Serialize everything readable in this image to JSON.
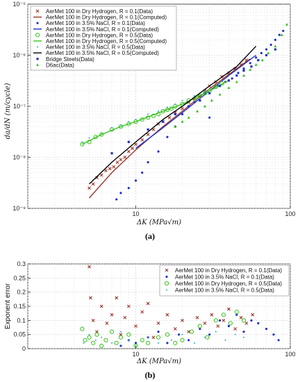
{
  "chart_data": [
    {
      "type": "scatter",
      "panel_label": "(a)",
      "xlabel": "ΔK (MPa√m)",
      "ylabel": "da/dN (m/cycle)",
      "xscale": "log",
      "yscale": "log",
      "xlim": [
        2,
        100
      ],
      "ylim": [
        1e-09,
        1e-05
      ],
      "x_tick_labels": [
        "10",
        "100"
      ],
      "x_tick_values": [
        10,
        100
      ],
      "y_tick_labels": [
        "10⁻⁹",
        "10⁻⁸",
        "10⁻⁷",
        "10⁻⁶",
        "10⁻⁵"
      ],
      "y_tick_values": [
        1e-09,
        1e-08,
        1e-07,
        1e-06,
        1e-05
      ],
      "grid": true,
      "legend_position": "top-left",
      "series": [
        {
          "name": "AerMet 100 in Dry Hydrogen, R = 0.1(Data)",
          "kind": "markers",
          "marker": "x",
          "color": "#a0352a",
          "x": [
            5.0,
            5.3,
            5.6,
            6.0,
            6.4,
            6.8,
            7.2,
            7.6,
            8.0,
            8.5,
            9.0,
            9.5,
            10.0,
            11.0,
            12.0,
            13.0,
            14.0,
            15.0,
            16.5,
            18.0,
            20.0,
            22.0,
            24.0,
            26.0,
            28.0,
            30.0,
            33.0,
            36.0,
            40.0,
            44.0,
            48.0,
            52.0
          ],
          "y": [
            2.5e-09,
            3e-09,
            4e-09,
            4.5e-09,
            5.5e-09,
            6e-09,
            6.5e-09,
            8e-09,
            9e-09,
            1e-08,
            1.3e-08,
            1.5e-08,
            1.8e-08,
            2.2e-08,
            2.8e-08,
            3.5e-08,
            4.5e-08,
            5e-08,
            6e-08,
            7.5e-08,
            9e-08,
            1.2e-07,
            1.4e-07,
            1.6e-07,
            2e-07,
            2.5e-07,
            3e-07,
            3.8e-07,
            4.5e-07,
            5.5e-07,
            6.5e-07,
            8e-07
          ]
        },
        {
          "name": "AerMet 100 in Dry Hydrogen, R = 0.1(Computed)",
          "kind": "line",
          "color": "#a0352a",
          "x": [
            5.0,
            7.0,
            10.0,
            15.0,
            20.0,
            30.0,
            40.0,
            55.0
          ],
          "y": [
            1.6e-09,
            5e-09,
            1.4e-08,
            4e-08,
            8e-08,
            2.2e-07,
            4.2e-07,
            8.5e-07
          ]
        },
        {
          "name": "AerMet 100 in 3.5% NaCl, R = 0.1(Data)",
          "kind": "markers",
          "marker": "dot",
          "color": "#1f2fd0",
          "x": [
            7.5,
            8.0,
            9.0,
            10.0,
            11.0,
            12.0,
            14.0,
            16.0,
            18.0,
            20.0,
            24.0,
            28.0,
            30.0,
            34.0,
            38.0,
            42.0,
            46.0,
            50.0,
            55.0,
            60.0,
            65.0,
            70.0,
            75.0,
            80.0,
            85.0,
            90.0
          ],
          "y": [
            1.5e-09,
            2e-09,
            2.5e-09,
            3.5e-09,
            5e-09,
            8e-09,
            1.3e-08,
            2.5e-08,
            4e-08,
            7e-08,
            1.2e-07,
            1.8e-07,
            6e-08,
            2.5e-07,
            3e-07,
            3.5e-07,
            4.5e-07,
            5.5e-07,
            7e-07,
            9e-07,
            1.1e-06,
            1.3e-06,
            1.6e-06,
            2e-06,
            2.5e-06,
            3e-06
          ]
        },
        {
          "name": "AerMet 100 in 3.5% NaCl, R = 0.1(Computed)",
          "kind": "line",
          "color": "#1f2fd0",
          "x": [
            10.0,
            15.0,
            20.0,
            30.0,
            40.0,
            60.0
          ],
          "y": [
            1.5e-08,
            3.8e-08,
            7.5e-08,
            2e-07,
            4e-07,
            1e-06
          ]
        },
        {
          "name": "AerMet 100 in Dry Hydrogen, R = 0.5(Data)",
          "kind": "markers",
          "marker": "o",
          "color": "#36c21b",
          "x": [
            4.5,
            5.0,
            5.5,
            6.0,
            7.0,
            8.0,
            9.0,
            10.0,
            11.0,
            12.0,
            13.0,
            14.0,
            15.0,
            16.0,
            17.0,
            18.0,
            20.0,
            22.0,
            24.0,
            26.0,
            28.0,
            30.0,
            33.0,
            36.0
          ],
          "y": [
            1.8e-08,
            2e-08,
            2.5e-08,
            2.8e-08,
            3.5e-08,
            4e-08,
            4.5e-08,
            5e-08,
            5.5e-08,
            6e-08,
            6.5e-08,
            7e-08,
            8e-08,
            8.5e-08,
            9e-08,
            1e-07,
            1.1e-07,
            1.3e-07,
            1.4e-07,
            1.6e-07,
            1.8e-07,
            2e-07,
            2.4e-07,
            2.8e-07
          ]
        },
        {
          "name": "AerMet 100 in Dry Hydrogen, R = 0.5(Computed)",
          "kind": "line",
          "color": "#36c21b",
          "x": [
            4.5,
            6.0,
            8.0,
            10.0,
            15.0,
            20.0,
            30.0,
            40.0
          ],
          "y": [
            1.8e-08,
            2.8e-08,
            4e-08,
            5e-08,
            8e-08,
            1.1e-07,
            2e-07,
            3.2e-07
          ]
        },
        {
          "name": "AerMet 100 in 3.5% NaCl, R = 0.5(Data)",
          "kind": "markers",
          "marker": "dot-small",
          "color": "#20b0c0",
          "x": [
            4.5,
            5.0,
            6.0,
            7.0,
            8.0,
            9.0,
            10.0,
            12.0,
            14.0,
            16.0,
            18.0,
            20.0,
            24.0,
            28.0
          ],
          "y": [
            2e-08,
            2.4e-08,
            3e-08,
            3.8e-08,
            4.3e-08,
            5e-08,
            5.5e-08,
            7e-08,
            8e-08,
            9.5e-08,
            1.1e-07,
            1.3e-07,
            1.6e-07,
            2e-07
          ]
        },
        {
          "name": "AerMet 100 in 3.5% NaCl, R = 0.5(Computed)",
          "kind": "line",
          "color": "#000000",
          "x": [
            5.0,
            7.0,
            10.0,
            15.0,
            20.0,
            30.0,
            45.0,
            60.0
          ],
          "y": [
            3e-09,
            8e-09,
            2e-08,
            5.5e-08,
            1e-07,
            2.5e-07,
            6e-07,
            1.5e-06
          ]
        },
        {
          "name": "Bridge Steels(Data)",
          "kind": "markers",
          "marker": "square",
          "color": "#1f2fd0",
          "x": [
            7.0,
            9.0,
            12.0,
            15.0,
            18.0,
            22.0,
            26.0,
            30.0,
            35.0,
            40.0,
            45.0,
            50.0,
            56.0,
            62.0,
            70.0,
            80.0
          ],
          "y": [
            1.2e-08,
            2e-08,
            3.5e-08,
            5e-08,
            7e-08,
            1e-07,
            1.3e-07,
            1.8e-07,
            2.5e-07,
            3.2e-07,
            4e-07,
            5e-07,
            6e-07,
            8e-07,
            1e-06,
            1.3e-06
          ]
        },
        {
          "name": "D6ac(Data)",
          "kind": "markers",
          "marker": "triangle",
          "color": "#36c21b",
          "x": [
            18.0,
            20.0,
            22.0,
            25.0,
            28.0,
            31.0,
            35.0,
            40.0,
            45.0,
            50.0,
            55.0,
            60.0,
            66.0,
            72.0,
            80.0,
            88.0,
            95.0
          ],
          "y": [
            4e-08,
            5e-08,
            6e-08,
            8e-08,
            1e-07,
            1.3e-07,
            1.7e-07,
            2.3e-07,
            3e-07,
            4e-07,
            5.2e-07,
            6.5e-07,
            8e-07,
            1.1e-06,
            1.5e-06,
            2.5e-06,
            4e-06
          ]
        }
      ]
    },
    {
      "type": "scatter",
      "panel_label": "(b)",
      "xlabel": "ΔK (MPa√m)",
      "ylabel": "Exponent error",
      "xscale": "log",
      "xlim": [
        2,
        100
      ],
      "ylim": [
        0,
        0.3
      ],
      "x_tick_labels": [
        "10",
        "100"
      ],
      "x_tick_values": [
        10,
        100
      ],
      "y_tick_labels": [
        "0",
        "0.05",
        "0.1",
        "0.15",
        "0.2",
        "0.25",
        "0.3"
      ],
      "y_tick_values": [
        0,
        0.05,
        0.1,
        0.15,
        0.2,
        0.25,
        0.3
      ],
      "grid": true,
      "legend_position": "top-right",
      "series": [
        {
          "name": "AerMet 100 in Dry Hydrogen, R = 0.1(Data)",
          "marker": "x",
          "color": "#a0352a",
          "x": [
            5.0,
            5.1,
            5.3,
            5.6,
            6.0,
            6.5,
            7.0,
            7.5,
            8.0,
            8.5,
            9.0,
            10.0,
            11.0,
            12.0,
            13.0,
            14.0,
            16.0,
            18.0,
            20.0,
            22.0,
            25.0,
            28.0,
            31.0,
            34.0,
            37.0,
            40.0,
            44.0,
            48.0,
            52.0,
            57.0
          ],
          "y": [
            0.29,
            0.18,
            0.1,
            0.06,
            0.15,
            0.09,
            0.12,
            0.18,
            0.05,
            0.11,
            0.15,
            0.08,
            0.13,
            0.16,
            0.04,
            0.09,
            0.12,
            0.07,
            0.1,
            0.06,
            0.11,
            0.09,
            0.12,
            0.08,
            0.1,
            0.14,
            0.07,
            0.11,
            0.09,
            0.12
          ]
        },
        {
          "name": "AerMet 100 in 3.5% NaCl, R = 0.1(Data)",
          "marker": "dot",
          "color": "#1f2fd0",
          "x": [
            8.0,
            9.0,
            10.0,
            12.0,
            14.0,
            16.0,
            19.0,
            22.0,
            26.0,
            30.0,
            35.0,
            40.0,
            45.0,
            50.0,
            56.0,
            62.0,
            70.0,
            78.0,
            84.0
          ],
          "y": [
            0.01,
            0.03,
            0.02,
            0.04,
            0.06,
            0.02,
            0.05,
            0.03,
            0.07,
            0.05,
            0.1,
            0.08,
            0.12,
            0.06,
            0.1,
            0.09,
            0.07,
            0.05,
            0.03
          ]
        },
        {
          "name": "AerMet 100 in Dry Hydrogen, R = 0.5(Data)",
          "marker": "o",
          "color": "#36c21b",
          "x": [
            4.5,
            4.7,
            5.0,
            5.3,
            5.6,
            6.0,
            6.4,
            7.0,
            7.5,
            8.0,
            9.0,
            10.0,
            11.0,
            12.0,
            14.0,
            16.0,
            18.0,
            20.0,
            23.0,
            26.0,
            29.0,
            33.0,
            37.0,
            41.0,
            45.0,
            50.0
          ],
          "y": [
            0.07,
            0.03,
            0.04,
            0.02,
            0.05,
            0.01,
            0.03,
            0.06,
            0.02,
            0.04,
            0.05,
            0.01,
            0.03,
            0.02,
            0.04,
            0.05,
            0.02,
            0.03,
            0.06,
            0.08,
            0.04,
            0.1,
            0.12,
            0.09,
            0.13,
            0.1
          ]
        },
        {
          "name": "AerMet 100 in 3.5% NaCl, R = 0.5(Data)",
          "marker": "dot-small",
          "color": "#20b0c0",
          "x": [
            4.6,
            5.0,
            5.5,
            6.0,
            7.0,
            8.0,
            9.0,
            10.0,
            12.0,
            14.0,
            17.0,
            20.0,
            24.0,
            28.0,
            33.0,
            38.0,
            44.0,
            50.0
          ],
          "y": [
            0.02,
            0.05,
            0.03,
            0.04,
            0.02,
            0.06,
            0.03,
            0.01,
            0.04,
            0.02,
            0.03,
            0.05,
            0.02,
            0.04,
            0.06,
            0.03,
            0.05,
            0.04
          ]
        }
      ]
    }
  ]
}
